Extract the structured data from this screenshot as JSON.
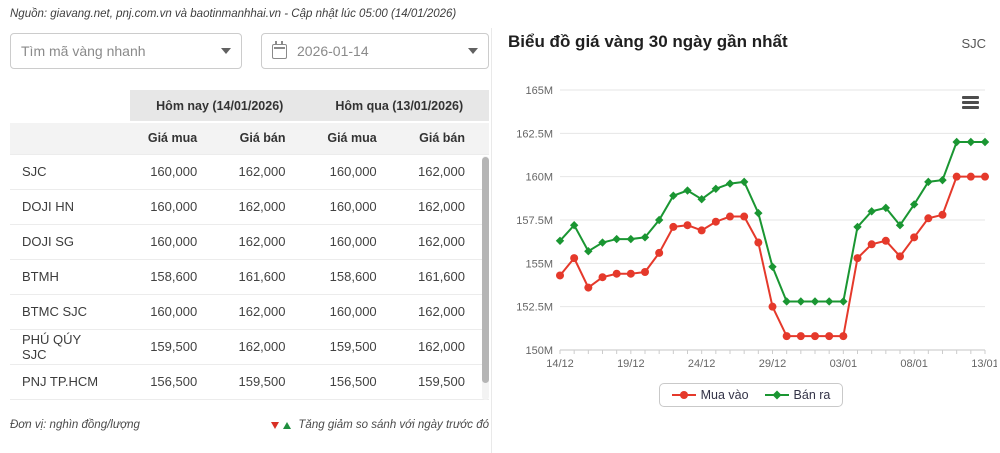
{
  "header": {
    "source_line": "Nguồn: giavang.net, pnj.com.vn và baotinmanhhai.vn - Cập nhật lúc 05:00 (14/01/2026)"
  },
  "controls": {
    "symbol_placeholder": "Tìm mã vàng nhanh",
    "date_value": "2026-01-14"
  },
  "table": {
    "group_headers": [
      "Hôm nay (14/01/2026)",
      "Hôm qua (13/01/2026)"
    ],
    "sub_headers": [
      "Giá mua",
      "Giá bán",
      "Giá mua",
      "Giá bán"
    ],
    "rows": [
      {
        "name": "SJC",
        "values": [
          "160,000",
          "162,000",
          "160,000",
          "162,000"
        ]
      },
      {
        "name": "DOJI HN",
        "values": [
          "160,000",
          "162,000",
          "160,000",
          "162,000"
        ]
      },
      {
        "name": "DOJI SG",
        "values": [
          "160,000",
          "162,000",
          "160,000",
          "162,000"
        ]
      },
      {
        "name": "BTMH",
        "values": [
          "158,600",
          "161,600",
          "158,600",
          "161,600"
        ]
      },
      {
        "name": "BTMC SJC",
        "values": [
          "160,000",
          "162,000",
          "160,000",
          "162,000"
        ]
      },
      {
        "name": "PHÚ QÚY SJC",
        "values": [
          "159,500",
          "162,000",
          "159,500",
          "162,000"
        ]
      },
      {
        "name": "PNJ TP.HCM",
        "values": [
          "156,500",
          "159,500",
          "156,500",
          "159,500"
        ]
      }
    ],
    "unit_note": "Đơn vị: nghìn đồng/lượng",
    "compare_note": "Tăng giảm so sánh với ngày trước đó"
  },
  "chart": {
    "title": "Biểu đồ giá vàng 30 ngày gần nhất",
    "symbol": "SJC",
    "menu_icon": "hamburger-icon"
  },
  "chart_data": {
    "type": "line",
    "x": [
      "14/12",
      "15/12",
      "16/12",
      "17/12",
      "18/12",
      "19/12",
      "20/12",
      "21/12",
      "22/12",
      "23/12",
      "24/12",
      "25/12",
      "26/12",
      "27/12",
      "28/12",
      "29/12",
      "30/12",
      "31/12",
      "01/01",
      "02/01",
      "03/01",
      "04/01",
      "05/01",
      "06/01",
      "07/01",
      "08/01",
      "09/01",
      "10/01",
      "11/01",
      "12/01",
      "13/01"
    ],
    "xtick_every": 5,
    "ylim": [
      150,
      165
    ],
    "ylabels": [
      "165M",
      "162.5M",
      "160M",
      "157.5M",
      "155M",
      "152.5M",
      "150M"
    ],
    "grid": true,
    "legend_position": "bottom",
    "series": [
      {
        "name": "Mua vào",
        "color": "#e5392b",
        "marker": "circle",
        "values": [
          154.3,
          155.3,
          153.6,
          154.2,
          154.4,
          154.4,
          154.5,
          155.6,
          157.1,
          157.2,
          156.9,
          157.4,
          157.7,
          157.7,
          156.2,
          152.5,
          150.8,
          150.8,
          150.8,
          150.8,
          150.8,
          155.3,
          156.1,
          156.3,
          155.4,
          156.5,
          157.6,
          157.8,
          160.0,
          160.0,
          160.0
        ]
      },
      {
        "name": "Bán ra",
        "color": "#1a9632",
        "marker": "diamond",
        "values": [
          156.3,
          157.2,
          155.7,
          156.2,
          156.4,
          156.4,
          156.5,
          157.5,
          158.9,
          159.2,
          158.7,
          159.3,
          159.6,
          159.7,
          157.9,
          154.8,
          152.8,
          152.8,
          152.8,
          152.8,
          152.8,
          157.1,
          158.0,
          158.2,
          157.2,
          158.4,
          159.7,
          159.8,
          162.0,
          162.0,
          162.0
        ]
      }
    ]
  }
}
